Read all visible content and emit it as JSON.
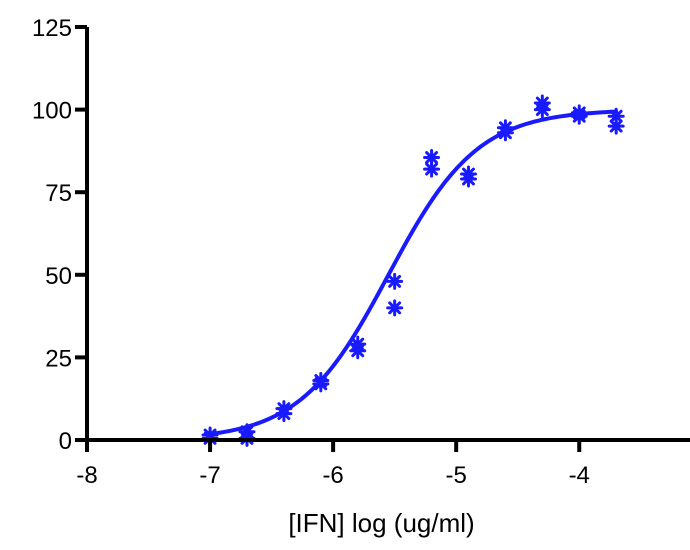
{
  "chart_data": {
    "type": "scatter",
    "title": "",
    "xlabel": "[IFN] log (ug/ml)",
    "ylabel": "",
    "xlim": [
      -8,
      -3.1
    ],
    "ylim": [
      0,
      125
    ],
    "x_ticks": [
      -8,
      -7,
      -6,
      -5,
      -4
    ],
    "y_ticks": [
      0,
      25,
      50,
      75,
      100,
      125
    ],
    "grid": false,
    "legend": "none",
    "color": "#1a1aff",
    "series": [
      {
        "marker": "asterisk",
        "points": [
          {
            "x": -7.0,
            "y": 0.5
          },
          {
            "x": -7.0,
            "y": 1.5
          },
          {
            "x": -6.7,
            "y": 0.5
          },
          {
            "x": -6.7,
            "y": 2.5
          },
          {
            "x": -6.4,
            "y": 8.0
          },
          {
            "x": -6.4,
            "y": 9.5
          },
          {
            "x": -6.1,
            "y": 17.0
          },
          {
            "x": -6.1,
            "y": 18.0
          },
          {
            "x": -5.8,
            "y": 27.0
          },
          {
            "x": -5.8,
            "y": 29.0
          },
          {
            "x": -5.5,
            "y": 40.0
          },
          {
            "x": -5.5,
            "y": 48.0
          },
          {
            "x": -5.2,
            "y": 82.0
          },
          {
            "x": -5.2,
            "y": 85.5
          },
          {
            "x": -4.9,
            "y": 79.0
          },
          {
            "x": -4.9,
            "y": 80.5
          },
          {
            "x": -4.6,
            "y": 93.0
          },
          {
            "x": -4.6,
            "y": 94.5
          },
          {
            "x": -4.3,
            "y": 100.0
          },
          {
            "x": -4.3,
            "y": 102.0
          },
          {
            "x": -4.0,
            "y": 98.0
          },
          {
            "x": -4.0,
            "y": 99.0
          },
          {
            "x": -3.7,
            "y": 95.0
          },
          {
            "x": -3.7,
            "y": 98.0
          }
        ]
      }
    ],
    "fit_curve": {
      "type": "sigmoidal",
      "bottom": 0,
      "top": 100,
      "log_ec50": -5.55,
      "hill_slope": 1.2,
      "x_range": [
        -7.0,
        -3.7
      ]
    }
  }
}
